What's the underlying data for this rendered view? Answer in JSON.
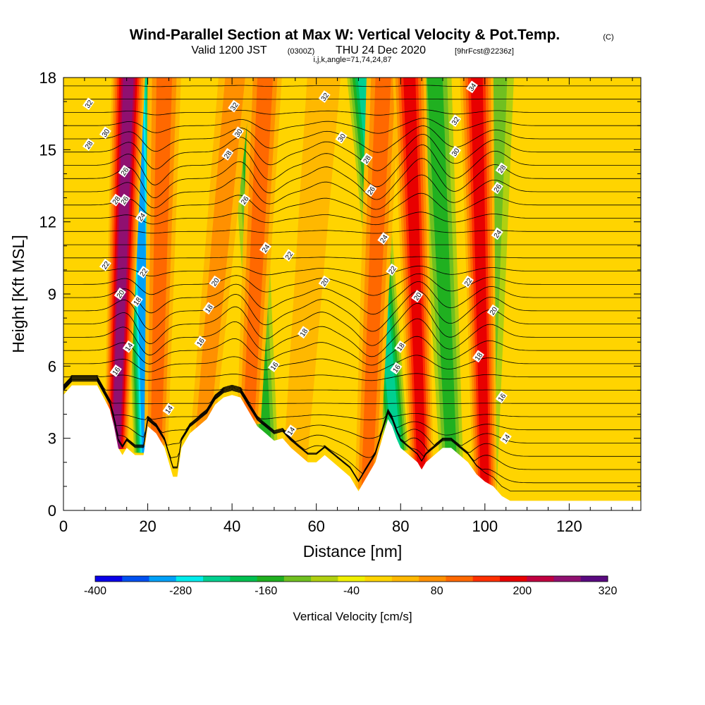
{
  "title": {
    "main": "Wind-Parallel Section at Max W: Vertical Velocity & Pot.Temp.",
    "copyright": "(C)",
    "valid": "Valid 1200 JST",
    "utc": "(0300Z)",
    "date": "THU 24 Dec 2020",
    "forecast": "[9hrFcst@2236z]",
    "ijk": "i,j,k,angle=71,74,24,87"
  },
  "chart_data": {
    "type": "heatmap",
    "xlabel": "Distance [nm]",
    "ylabel": "Height [Kft MSL]",
    "xlim": [
      0,
      137
    ],
    "ylim": [
      0,
      18
    ],
    "x_ticks": [
      0,
      20,
      40,
      60,
      80,
      100,
      120
    ],
    "y_ticks": [
      0,
      3,
      6,
      9,
      12,
      15,
      18
    ],
    "colorbar": {
      "label": "Vertical Velocity [cm/s]",
      "tick_labels": [
        "-400",
        "-280",
        "-160",
        "-40",
        "80",
        "200",
        "320"
      ],
      "tick_values": [
        -400,
        -280,
        -160,
        -40,
        80,
        200,
        320
      ],
      "levels": [
        -400,
        -360,
        -320,
        -280,
        -240,
        -200,
        -160,
        -120,
        -80,
        -40,
        0,
        40,
        80,
        120,
        160,
        200,
        240,
        280,
        320
      ],
      "colors": [
        "#0a00e8",
        "#0050f0",
        "#00a0f8",
        "#00ecec",
        "#00d090",
        "#00c050",
        "#20b020",
        "#70c020",
        "#b0d010",
        "#f0f000",
        "#ffd400",
        "#ffb800",
        "#ff9000",
        "#ff6800",
        "#ff3000",
        "#e80000",
        "#c00040",
        "#901070",
        "#5a0a80"
      ]
    },
    "terrain": [
      [
        0,
        4.8
      ],
      [
        2,
        5.2
      ],
      [
        8,
        5.2
      ],
      [
        11,
        4.2
      ],
      [
        12,
        3.5
      ],
      [
        13,
        2.6
      ],
      [
        14,
        2.3
      ],
      [
        15,
        2.6
      ],
      [
        17,
        2.3
      ],
      [
        19,
        2.3
      ],
      [
        20,
        3.5
      ],
      [
        22,
        3.2
      ],
      [
        24,
        2.6
      ],
      [
        25,
        2.0
      ],
      [
        26,
        1.4
      ],
      [
        27,
        1.4
      ],
      [
        28,
        2.6
      ],
      [
        30,
        3.2
      ],
      [
        32,
        3.5
      ],
      [
        34,
        3.8
      ],
      [
        36,
        4.4
      ],
      [
        38,
        4.7
      ],
      [
        40,
        4.8
      ],
      [
        42,
        4.7
      ],
      [
        44,
        4.1
      ],
      [
        46,
        3.5
      ],
      [
        48,
        3.2
      ],
      [
        50,
        2.9
      ],
      [
        52,
        3.0
      ],
      [
        54,
        2.6
      ],
      [
        56,
        2.3
      ],
      [
        58,
        2.0
      ],
      [
        60,
        2.0
      ],
      [
        62,
        2.3
      ],
      [
        64,
        2.0
      ],
      [
        66,
        1.7
      ],
      [
        68,
        1.4
      ],
      [
        69,
        1.1
      ],
      [
        70,
        0.8
      ],
      [
        71,
        1.1
      ],
      [
        72,
        1.4
      ],
      [
        74,
        2.0
      ],
      [
        76,
        3.2
      ],
      [
        77,
        3.8
      ],
      [
        78,
        3.5
      ],
      [
        79,
        3.0
      ],
      [
        80,
        2.6
      ],
      [
        82,
        2.3
      ],
      [
        84,
        2.0
      ],
      [
        85,
        1.7
      ],
      [
        86,
        2.0
      ],
      [
        88,
        2.3
      ],
      [
        90,
        2.6
      ],
      [
        92,
        2.6
      ],
      [
        94,
        2.3
      ],
      [
        96,
        2.0
      ],
      [
        98,
        1.5
      ],
      [
        100,
        1.2
      ],
      [
        102,
        1.0
      ],
      [
        104,
        0.6
      ],
      [
        106,
        0.4
      ],
      [
        137,
        0.4
      ]
    ],
    "updrafts": [
      {
        "x_top": 15.5,
        "x_bot": 12.5,
        "w": 300
      },
      {
        "x_top": 24,
        "x_bot": 22,
        "w": 140
      },
      {
        "x_top": 41,
        "x_bot": 33,
        "w": 100
      },
      {
        "x_top": 48,
        "x_bot": 44,
        "w": 120
      },
      {
        "x_top": 62,
        "x_bot": 55,
        "w": 60
      },
      {
        "x_top": 76,
        "x_bot": 72,
        "w": 120
      },
      {
        "x_top": 82,
        "x_bot": 85,
        "w": 220
      },
      {
        "x_top": 98,
        "x_bot": 100,
        "w": 200
      }
    ],
    "downdrafts": [
      {
        "x_top": 17.5,
        "x_bot": 19.5,
        "w": -300
      },
      {
        "x_top": 43,
        "x_bot": 48,
        "w": -150
      },
      {
        "x_top": 71,
        "x_bot": 79,
        "w": -220
      },
      {
        "x_top": 88,
        "x_bot": 92,
        "w": -130
      },
      {
        "x_top": 103,
        "x_bot": 100,
        "w": -100
      }
    ],
    "theta_contours": {
      "units": "deg C",
      "levels": [
        14,
        16,
        18,
        20,
        22,
        24,
        26,
        28,
        30,
        32,
        34
      ],
      "labels": [
        {
          "x": 14.5,
          "y": 12.9,
          "text": "26"
        },
        {
          "x": 12.5,
          "y": 12.9,
          "text": "28"
        },
        {
          "x": 6,
          "y": 16.9,
          "text": "32"
        },
        {
          "x": 10,
          "y": 15.7,
          "text": "30"
        },
        {
          "x": 6,
          "y": 15.2,
          "text": "28"
        },
        {
          "x": 14.5,
          "y": 14.1,
          "text": "26"
        },
        {
          "x": 18.5,
          "y": 12.2,
          "text": "24"
        },
        {
          "x": 10,
          "y": 10.2,
          "text": "22"
        },
        {
          "x": 19,
          "y": 9.9,
          "text": "22"
        },
        {
          "x": 13.5,
          "y": 9.0,
          "text": "20"
        },
        {
          "x": 17.5,
          "y": 8.7,
          "text": "18"
        },
        {
          "x": 15.5,
          "y": 6.8,
          "text": "14"
        },
        {
          "x": 12.5,
          "y": 5.8,
          "text": "16"
        },
        {
          "x": 25,
          "y": 4.2,
          "text": "14"
        },
        {
          "x": 40.5,
          "y": 16.8,
          "text": "32"
        },
        {
          "x": 41.5,
          "y": 15.7,
          "text": "30"
        },
        {
          "x": 39,
          "y": 14.8,
          "text": "28"
        },
        {
          "x": 43,
          "y": 12.9,
          "text": "26"
        },
        {
          "x": 48,
          "y": 10.9,
          "text": "24"
        },
        {
          "x": 53.5,
          "y": 10.6,
          "text": "22"
        },
        {
          "x": 36,
          "y": 9.5,
          "text": "20"
        },
        {
          "x": 34.5,
          "y": 8.4,
          "text": "18"
        },
        {
          "x": 32.5,
          "y": 7.0,
          "text": "16"
        },
        {
          "x": 50,
          "y": 6.0,
          "text": "16"
        },
        {
          "x": 57,
          "y": 7.4,
          "text": "18"
        },
        {
          "x": 62,
          "y": 9.5,
          "text": "20"
        },
        {
          "x": 54,
          "y": 3.3,
          "text": "14"
        },
        {
          "x": 62,
          "y": 17.2,
          "text": "32"
        },
        {
          "x": 66,
          "y": 15.5,
          "text": "30"
        },
        {
          "x": 72,
          "y": 14.6,
          "text": "28"
        },
        {
          "x": 73,
          "y": 13.3,
          "text": "26"
        },
        {
          "x": 76,
          "y": 11.3,
          "text": "24"
        },
        {
          "x": 78,
          "y": 10.0,
          "text": "22"
        },
        {
          "x": 84,
          "y": 8.9,
          "text": "20"
        },
        {
          "x": 80,
          "y": 6.8,
          "text": "18"
        },
        {
          "x": 79,
          "y": 5.9,
          "text": "16"
        },
        {
          "x": 97,
          "y": 17.6,
          "text": "34"
        },
        {
          "x": 93,
          "y": 16.2,
          "text": "32"
        },
        {
          "x": 93,
          "y": 14.9,
          "text": "30"
        },
        {
          "x": 104,
          "y": 14.2,
          "text": "28"
        },
        {
          "x": 103,
          "y": 13.4,
          "text": "26"
        },
        {
          "x": 103,
          "y": 11.5,
          "text": "24"
        },
        {
          "x": 96,
          "y": 9.5,
          "text": "22"
        },
        {
          "x": 102,
          "y": 8.3,
          "text": "20"
        },
        {
          "x": 98.5,
          "y": 6.4,
          "text": "18"
        },
        {
          "x": 104,
          "y": 4.7,
          "text": "16"
        },
        {
          "x": 105,
          "y": 3.0,
          "text": "14"
        }
      ]
    }
  }
}
